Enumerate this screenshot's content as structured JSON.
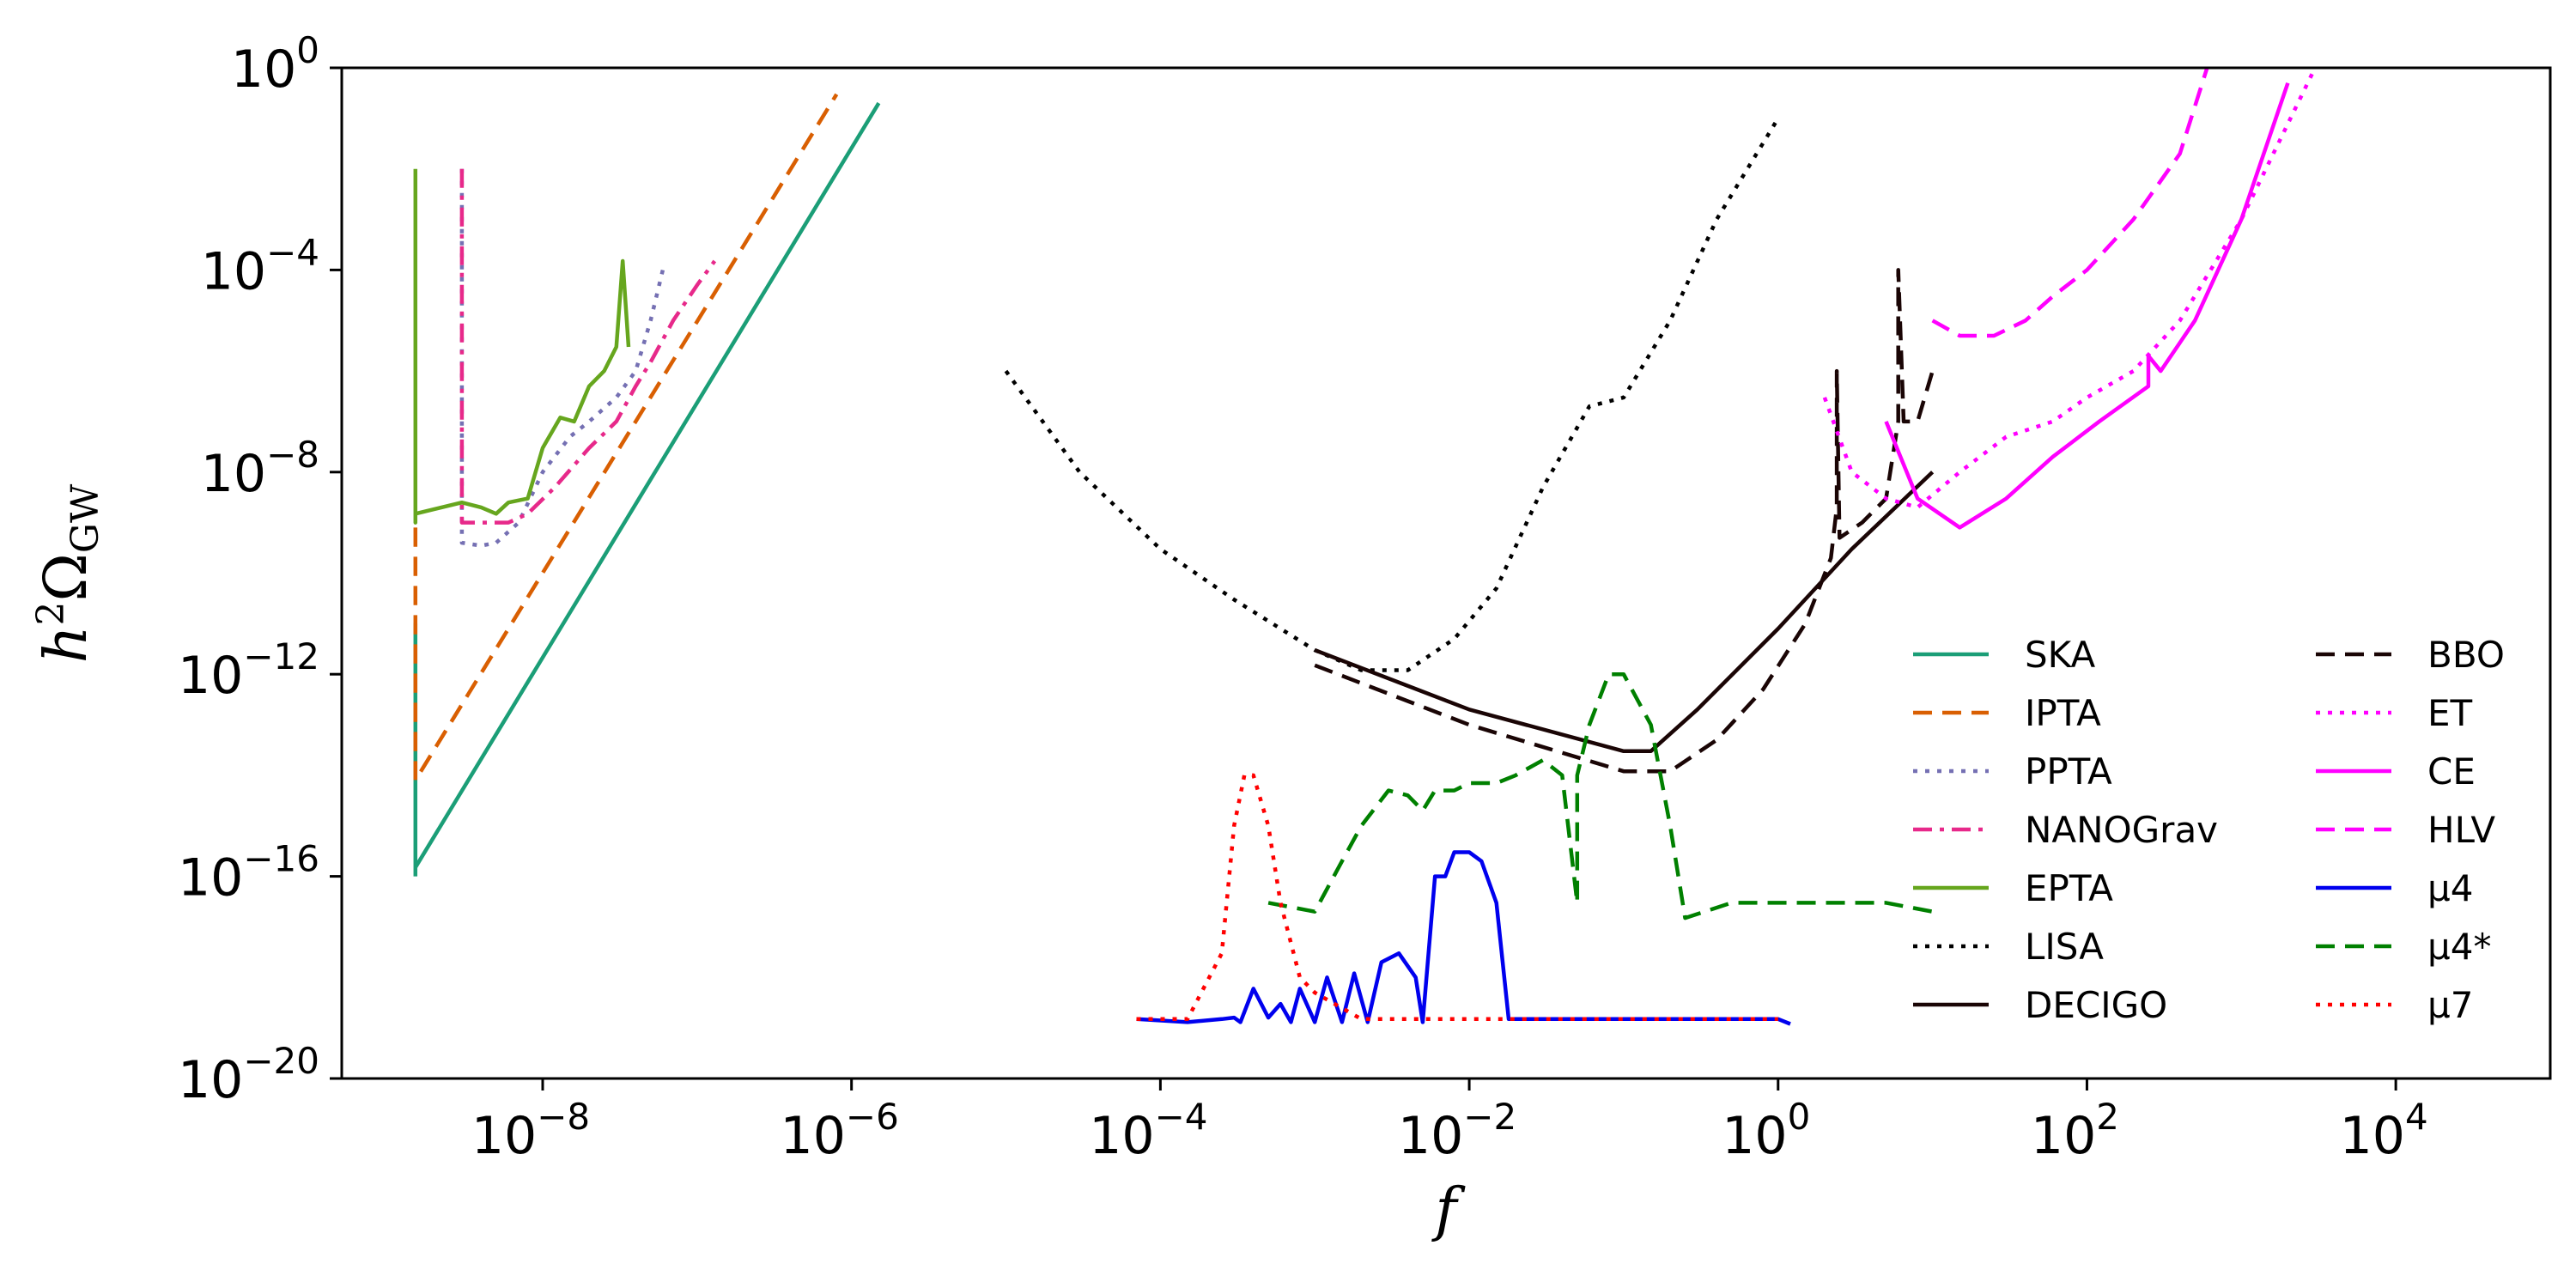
{
  "chart_data": {
    "type": "line",
    "xlabel": "f",
    "ylabel": "h²Ω_GW",
    "x_scale": "log",
    "y_scale": "log",
    "xlim": [
      5e-10,
      100000.0
    ],
    "ylim": [
      1e-20,
      1
    ],
    "grid": false,
    "legend_position": "lower-right",
    "x_ticks": [
      {
        "value": 1e-08,
        "base": "10",
        "exp": "−8"
      },
      {
        "value": 1e-06,
        "base": "10",
        "exp": "−6"
      },
      {
        "value": 0.0001,
        "base": "10",
        "exp": "−4"
      },
      {
        "value": 0.01,
        "base": "10",
        "exp": "−2"
      },
      {
        "value": 1,
        "base": "10",
        "exp": "0"
      },
      {
        "value": 100.0,
        "base": "10",
        "exp": "2"
      },
      {
        "value": 10000.0,
        "base": "10",
        "exp": "4"
      }
    ],
    "y_ticks": [
      {
        "value": 1,
        "base": "10",
        "exp": "0"
      },
      {
        "value": 0.0001,
        "base": "10",
        "exp": "−4"
      },
      {
        "value": 1e-08,
        "base": "10",
        "exp": "−8"
      },
      {
        "value": 1e-12,
        "base": "10",
        "exp": "−12"
      },
      {
        "value": 1e-16,
        "base": "10",
        "exp": "−16"
      },
      {
        "value": 1e-20,
        "base": "10",
        "exp": "−20"
      }
    ],
    "series": [
      {
        "name": "SKA",
        "color": "#1b9e77",
        "dash": "solid",
        "x": [
          1.5e-09,
          1.5e-09,
          1.5e-09,
          1.5e-06
        ],
        "y": [
          1e-16,
          1e-11,
          1.5e-16,
          0.2
        ]
      },
      {
        "name": "IPTA",
        "color": "#d95f02",
        "dash": "dashed",
        "x": [
          1.5e-09,
          1.5e-09,
          1.5e-09,
          8e-07
        ],
        "y": [
          3e-14,
          1e-09,
          8e-15,
          0.3
        ]
      },
      {
        "name": "PPTA",
        "color": "#7570b3",
        "dash": "dotted",
        "x": [
          3e-09,
          3e-09,
          4e-09,
          5e-09,
          7e-09,
          1e-08,
          1.5e-08,
          2e-08,
          3e-08,
          4e-08,
          5e-08,
          6e-08
        ],
        "y": [
          0.01,
          4e-10,
          3.5e-10,
          4e-10,
          1e-09,
          1e-08,
          5e-08,
          1e-07,
          3e-07,
          1e-06,
          1e-05,
          0.0001
        ]
      },
      {
        "name": "NANOGrav",
        "color": "#e7298a",
        "dash": "dashdot",
        "x": [
          3e-09,
          3e-09,
          3.5e-09,
          6e-09,
          8e-09,
          1.2e-08,
          2e-08,
          3e-08,
          4e-08,
          5e-08,
          7e-08,
          1e-07,
          1.3e-07
        ],
        "y": [
          0.01,
          1e-09,
          1e-09,
          1e-09,
          1.5e-09,
          5e-09,
          3e-08,
          1e-07,
          5e-07,
          1.5e-06,
          1e-05,
          5e-05,
          0.00015
        ]
      },
      {
        "name": "EPTA",
        "color": "#66a61e",
        "dash": "solid",
        "x": [
          1.5e-09,
          1.5e-09,
          1.5e-09,
          3e-09,
          4e-09,
          5e-09,
          6e-09,
          8e-09,
          1e-08,
          1.3e-08,
          1.6e-08,
          2e-08,
          2.5e-08,
          3e-08,
          3.3e-08,
          3.6e-08
        ],
        "y": [
          0.01,
          1e-09,
          1.5e-09,
          2.5e-09,
          2e-09,
          1.5e-09,
          2.5e-09,
          3e-09,
          3e-08,
          1.2e-07,
          1e-07,
          5e-07,
          1e-06,
          3e-06,
          0.00015,
          3e-06
        ]
      },
      {
        "name": "LISA",
        "color": "#000000",
        "dash": "dotted",
        "x": [
          1e-05,
          3e-05,
          0.0001,
          0.0003,
          0.001,
          0.002,
          0.004,
          0.008,
          0.015,
          0.03,
          0.06,
          0.1,
          0.2,
          0.4,
          1
        ],
        "y": [
          1e-06,
          1e-08,
          3e-10,
          3e-11,
          3e-12,
          1.2e-12,
          1.2e-12,
          5e-12,
          5e-11,
          5e-09,
          2e-07,
          3e-07,
          1e-05,
          0.001,
          0.1
        ]
      },
      {
        "name": "DECIGO",
        "color": "#1a0505",
        "dash": "solid",
        "x": [
          0.001,
          0.01,
          0.1,
          0.15,
          0.3,
          1,
          3,
          10
        ],
        "y": [
          3e-12,
          2e-13,
          3e-14,
          3e-14,
          2e-13,
          8e-12,
          3e-10,
          1e-08
        ]
      },
      {
        "name": "BBO",
        "color": "#1a0505",
        "dash": "dashed",
        "x": [
          0.001,
          0.01,
          0.1,
          0.2,
          0.4,
          0.8,
          1.5,
          2.2,
          2.4,
          2.4,
          2.5,
          3.5,
          5,
          6,
          6,
          6.5,
          8,
          10
        ],
        "y": [
          1.5e-12,
          1e-13,
          1.2e-14,
          1.2e-14,
          5e-14,
          5e-13,
          1e-11,
          2e-10,
          2e-09,
          1e-06,
          5e-10,
          1e-09,
          3e-09,
          1e-07,
          0.0001,
          1e-07,
          1e-07,
          1e-06
        ]
      },
      {
        "name": "ET",
        "color": "#ff00ff",
        "dash": "dotted",
        "x": [
          2,
          3,
          5,
          8,
          15,
          30,
          60,
          100,
          200,
          400,
          1000,
          3000
        ],
        "y": [
          3e-07,
          1e-08,
          3e-09,
          2e-09,
          1e-08,
          5e-08,
          1e-07,
          3e-07,
          1e-06,
          1e-05,
          0.001,
          1
        ]
      },
      {
        "name": "CE",
        "color": "#ff00ff",
        "dash": "solid",
        "x": [
          5,
          8,
          15,
          30,
          60,
          120,
          250,
          250,
          300,
          500,
          1000,
          2000
        ],
        "y": [
          1e-07,
          3e-09,
          8e-10,
          3e-09,
          2e-08,
          1e-07,
          5e-07,
          2e-06,
          1e-06,
          1e-05,
          0.001,
          0.5
        ]
      },
      {
        "name": "HLV",
        "color": "#ff00ff",
        "dash": "dashed",
        "x": [
          10,
          15,
          25,
          40,
          60,
          100,
          200,
          400,
          600
        ],
        "y": [
          1e-05,
          5e-06,
          5e-06,
          1e-05,
          3e-05,
          0.0001,
          0.001,
          0.02,
          1
        ]
      },
      {
        "name": "μ4",
        "color": "#0000ee",
        "dash": "solid",
        "x": [
          7e-05,
          0.00015,
          0.00025,
          0.0003,
          0.00033,
          0.0004,
          0.0005,
          0.0006,
          0.0007,
          0.0008,
          0.001,
          0.0012,
          0.0015,
          0.0018,
          0.0022,
          0.0027,
          0.0035,
          0.0045,
          0.005,
          0.006,
          0.007,
          0.008,
          0.01,
          0.012,
          0.015,
          0.018,
          0.025,
          0.05,
          0.2,
          0.5,
          1,
          1.2
        ],
        "y": [
          1.5e-19,
          1.3e-19,
          1.5e-19,
          1.6e-19,
          1.3e-19,
          6e-19,
          1.6e-19,
          3e-19,
          1.3e-19,
          6e-19,
          1.3e-19,
          1e-18,
          1.3e-19,
          1.2e-18,
          1.3e-19,
          2e-18,
          3e-18,
          1e-18,
          1.3e-19,
          1e-16,
          1e-16,
          3e-16,
          3e-16,
          2e-16,
          3e-17,
          1.5e-19,
          1.5e-19,
          1.5e-19,
          1.5e-19,
          1.5e-19,
          1.5e-19,
          1.2e-19
        ]
      },
      {
        "name": "μ4*",
        "color": "#008000",
        "dash": "dashed",
        "x": [
          0.0005,
          0.001,
          0.0015,
          0.002,
          0.003,
          0.004,
          0.005,
          0.006,
          0.008,
          0.01,
          0.015,
          0.02,
          0.03,
          0.04,
          0.05,
          0.05,
          0.06,
          0.08,
          0.1,
          0.15,
          0.2,
          0.25,
          0.5,
          1,
          5,
          10
        ],
        "y": [
          3e-17,
          2e-17,
          2e-16,
          1e-15,
          5e-15,
          4e-15,
          2e-15,
          5e-15,
          5e-15,
          7e-15,
          7e-15,
          1e-14,
          2e-14,
          1e-14,
          3e-17,
          1e-14,
          1e-13,
          1e-12,
          1e-12,
          1e-13,
          1e-15,
          1.5e-17,
          3e-17,
          3e-17,
          3e-17,
          2e-17
        ]
      },
      {
        "name": "μ7",
        "color": "#ff0000",
        "dash": "dotted",
        "x": [
          7e-05,
          0.00015,
          0.00025,
          0.0003,
          0.00035,
          0.0004,
          0.0005,
          0.0006,
          0.0008,
          0.001,
          0.002,
          0.01,
          0.1,
          1
        ],
        "y": [
          1.5e-19,
          1.5e-19,
          3e-18,
          1e-15,
          1e-14,
          1e-14,
          1e-15,
          3e-17,
          1e-18,
          5e-19,
          1.5e-19,
          1.5e-19,
          1.5e-19,
          1.5e-19
        ]
      }
    ]
  }
}
